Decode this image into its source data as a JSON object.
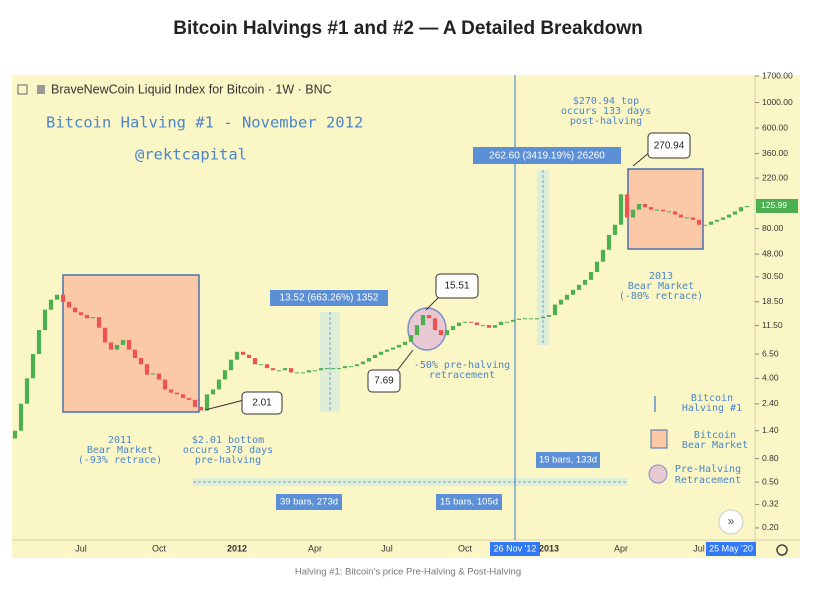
{
  "header": {
    "title": "Bitcoin Halvings #1 and #2 — A Detailed Breakdown"
  },
  "caption": "Halving #1: Bitcoin's price Pre-Halving & Post-Halving",
  "chart_data": {
    "type": "candlestick",
    "symbol": "BraveNewCoin Liquid Index for Bitcoin · 1W · BNC",
    "log_scale": true,
    "up_color": "#4caf50",
    "down_color": "#ef5350",
    "categories": [
      null,
      null,
      null,
      null,
      null,
      null,
      null,
      null,
      null,
      null,
      null,
      "Jul",
      null,
      null,
      null,
      null,
      null,
      null,
      null,
      null,
      null,
      null,
      null,
      null,
      "Oct",
      null,
      null,
      null,
      null,
      null,
      null,
      null,
      null,
      null,
      null,
      null,
      null,
      "2012",
      null,
      null,
      null,
      null,
      null,
      null,
      null,
      null,
      null,
      null,
      null,
      null,
      "Apr",
      null,
      null,
      null,
      null,
      null,
      null,
      null,
      null,
      null,
      null,
      null,
      "Jul",
      null,
      null,
      null,
      null,
      null,
      null,
      null,
      null,
      null,
      null,
      null,
      null,
      "Oct",
      null,
      null,
      null,
      null,
      null,
      null,
      null,
      null,
      null,
      null,
      null,
      null,
      null,
      "2013",
      null,
      null,
      null,
      null,
      null,
      null,
      null,
      null,
      null,
      null,
      null,
      "Apr",
      null,
      null,
      null,
      null,
      null,
      null,
      null,
      null,
      null,
      null,
      null,
      null,
      "Jul",
      null,
      null,
      null,
      null,
      null,
      null,
      null,
      null
    ],
    "open": [
      1.2,
      1.4,
      2.4,
      4.0,
      6.5,
      10.5,
      15.8,
      19.3,
      21.3,
      18.5,
      16.5,
      15.0,
      14.2,
      13.3,
      13.6,
      11.0,
      8.2,
      7.1,
      7.8,
      8.6,
      7.1,
      6.0,
      5.3,
      4.3,
      4.4,
      3.9,
      3.2,
      3.0,
      2.9,
      2.7,
      2.6,
      2.26,
      2.1,
      2.9,
      3.2,
      3.9,
      4.7,
      5.8,
      6.8,
      6.4,
      6.0,
      5.3,
      5.3,
      4.9,
      4.7,
      4.7,
      4.9,
      4.5,
      4.5,
      4.5,
      4.7,
      4.7,
      4.9,
      4.9,
      4.9,
      4.9,
      5.1,
      5.1,
      5.3,
      5.6,
      6.0,
      6.4,
      6.8,
      7.1,
      7.4,
      7.8,
      8.3,
      9.5,
      11.6,
      14.2,
      13.3,
      10.5,
      9.5,
      10.5,
      11.4,
      12.2,
      12.4,
      12.2,
      11.6,
      11.6,
      11.0,
      11.6,
      12.4,
      12.4,
      12.9,
      13.2,
      13.3,
      13.3,
      13.3,
      13.7,
      14.2,
      17.5,
      19.3,
      21.3,
      23.5,
      26,
      28.7,
      33.6,
      41.3,
      52.4,
      70.6,
      86.5,
      159,
      100,
      117,
      131,
      123,
      117,
      117,
      113,
      113,
      106,
      100,
      100,
      95.5,
      86.5,
      86.5,
      92,
      95.5,
      100,
      106,
      113,
      123
    ],
    "close": [
      1.4,
      2.4,
      4.0,
      6.5,
      10.5,
      15.8,
      19.3,
      21.3,
      18.5,
      16.5,
      15.0,
      14.2,
      13.3,
      13.6,
      11.0,
      8.2,
      7.1,
      7.8,
      8.6,
      7.1,
      6.0,
      5.3,
      4.3,
      4.4,
      3.9,
      3.2,
      3.0,
      2.9,
      2.7,
      2.6,
      2.26,
      2.1,
      2.9,
      3.2,
      3.9,
      4.7,
      5.8,
      6.8,
      6.4,
      6.0,
      5.3,
      5.3,
      4.9,
      4.7,
      4.7,
      4.9,
      4.5,
      4.5,
      4.5,
      4.7,
      4.7,
      4.9,
      4.9,
      4.9,
      4.9,
      5.1,
      5.1,
      5.3,
      5.6,
      6.0,
      6.4,
      6.8,
      7.1,
      7.4,
      7.8,
      8.3,
      9.5,
      11.6,
      14.2,
      13.3,
      10.5,
      9.5,
      10.5,
      11.4,
      12.2,
      12.4,
      12.2,
      11.6,
      11.6,
      11.0,
      11.6,
      12.4,
      12.4,
      12.9,
      13.2,
      13.3,
      13.3,
      13.3,
      13.7,
      14.2,
      17.5,
      19.3,
      21.3,
      23.5,
      26,
      28.7,
      33.6,
      41.3,
      52.4,
      70.6,
      86.5,
      159,
      100,
      117,
      131,
      123,
      117,
      117,
      113,
      113,
      106,
      100,
      100,
      95.5,
      86.5,
      86.5,
      92,
      95.5,
      100,
      106,
      113,
      123,
      126
    ],
    "ylim": [
      0.157,
      1735
    ],
    "yticks": [
      {
        "value": 0.2,
        "label": "0.20"
      },
      {
        "value": 0.32,
        "label": "0.32"
      },
      {
        "value": 0.5,
        "label": "0.50"
      },
      {
        "value": 0.8,
        "label": "0.80"
      },
      {
        "value": 1.4,
        "label": "1.40"
      },
      {
        "value": 2.4,
        "label": "2.40"
      },
      {
        "value": 4,
        "label": "4.00"
      },
      {
        "value": 6.5,
        "label": "6.50"
      },
      {
        "value": 11.5,
        "label": "11.50"
      },
      {
        "value": 18.5,
        "label": "18.50"
      },
      {
        "value": 30.5,
        "label": "30.50"
      },
      {
        "value": 48,
        "label": "48.00"
      },
      {
        "value": 80,
        "label": "80.00"
      },
      {
        "value": 220,
        "label": "220.00"
      },
      {
        "value": 360,
        "label": "360.00"
      },
      {
        "value": 600,
        "label": "600.00"
      },
      {
        "value": 1000,
        "label": "1000.00"
      },
      {
        "value": 1700,
        "label": "1700.00"
      }
    ],
    "last_price": 125.99,
    "cursor_labels": [
      "26 Nov '12",
      "25 May '20"
    ],
    "annotations": {
      "halving_title": "Bitcoin Halving #1 - November 2012",
      "author": "@rektcapital",
      "top_note": [
        "$270.94 top",
        "occurs 133 days",
        "post-halving"
      ],
      "measure_post": "262.60 (3419.19%) 26260",
      "top_value": "270.94",
      "bear_2013": [
        "2013",
        "Bear Market",
        "(-80% retrace)"
      ],
      "measure_pre": "13.52 (663.26%) 1352",
      "retrace_high": "15.51",
      "retrace_low": "7.69",
      "retrace_note": [
        "-50% pre-halving",
        "retracement"
      ],
      "bottom_value": "2.01",
      "bear_2011": [
        "2011",
        "Bear Market",
        "(-93% retrace)"
      ],
      "bottom_note": [
        "$2.01 bottom",
        "occurs 378 days",
        "pre-halving"
      ],
      "bars_post": "19 bars, 133d",
      "bars_pre": "39 bars, 273d",
      "bars_retrace": "15 bars, 105d"
    },
    "legend": [
      [
        "Bitcoin",
        "Halving #1"
      ],
      [
        "Bitcoin",
        "Bear Market"
      ],
      [
        "Pre-Halving",
        "Retracement"
      ]
    ]
  }
}
